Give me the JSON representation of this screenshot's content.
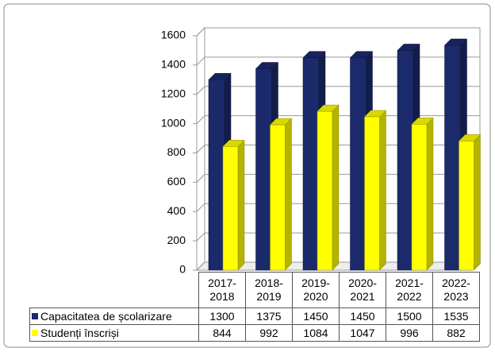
{
  "chart_data": {
    "type": "bar3d",
    "categories": [
      "2017-2018",
      "2018-2019",
      "2019-2020",
      "2020-2021",
      "2021-2022",
      "2022-2023"
    ],
    "series": [
      {
        "name": "Capacitatea de școlarizare",
        "color": "#1b2a6b",
        "values": [
          1300,
          1375,
          1450,
          1450,
          1500,
          1535
        ]
      },
      {
        "name": "Studenți înscriși",
        "color": "#ffff00",
        "values": [
          844,
          992,
          1084,
          1047,
          996,
          882
        ]
      }
    ],
    "ylim": [
      0,
      1600
    ],
    "yticks": [
      0,
      200,
      400,
      600,
      800,
      1000,
      1200,
      1400,
      1600
    ],
    "grid": true
  }
}
